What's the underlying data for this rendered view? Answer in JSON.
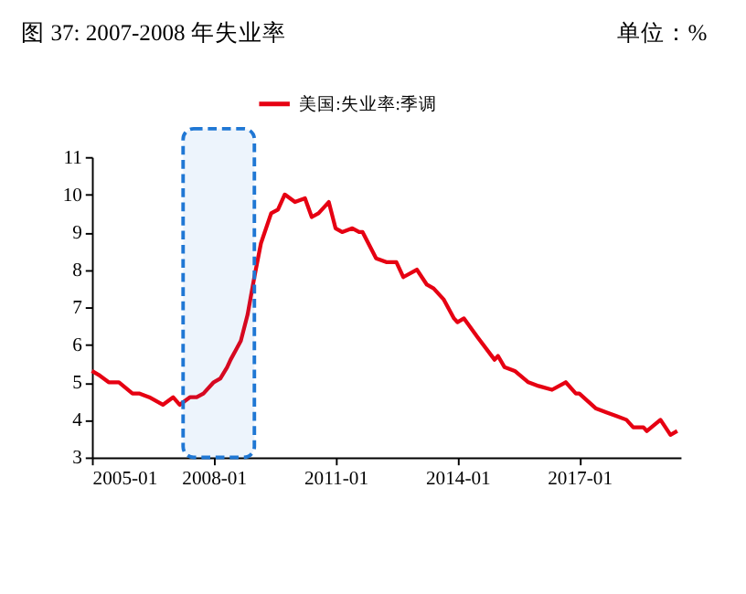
{
  "chart_data": {
    "type": "line",
    "title": "图 37:      2007-2008 年失业率",
    "annotations": [
      "单位：%"
    ],
    "x": [
      "2005-01",
      "2005-03",
      "2005-06",
      "2005-09",
      "2006-01",
      "2006-03",
      "2006-06",
      "2006-10",
      "2007-01",
      "2007-03",
      "2007-06",
      "2007-08",
      "2007-10",
      "2008-01",
      "2008-03",
      "2008-05",
      "2008-06",
      "2008-09",
      "2008-11",
      "2008-12",
      "2009-01",
      "2009-03",
      "2009-06",
      "2009-08",
      "2009-10",
      "2010-01",
      "2010-04",
      "2010-06",
      "2010-08",
      "2010-11",
      "2011-01",
      "2011-03",
      "2011-06",
      "2011-08",
      "2011-09",
      "2012-01",
      "2012-04",
      "2012-07",
      "2012-09",
      "2013-01",
      "2013-04",
      "2013-06",
      "2013-09",
      "2013-12",
      "2014-01",
      "2014-03",
      "2014-07",
      "2014-12",
      "2015-01",
      "2015-03",
      "2015-06",
      "2015-10",
      "2016-01",
      "2016-05",
      "2016-09",
      "2016-12",
      "2017-01",
      "2017-06",
      "2017-09",
      "2017-12",
      "2018-03",
      "2018-05",
      "2018-08",
      "2018-09",
      "2019-01",
      "2019-04",
      "2019-06"
    ],
    "series": [
      {
        "name": "美国:失业率:季调",
        "color": "#e60012",
        "values": [
          5.3,
          5.2,
          5.0,
          5.0,
          4.7,
          4.7,
          4.6,
          4.4,
          4.6,
          4.4,
          4.6,
          4.6,
          4.7,
          5.0,
          5.1,
          5.4,
          5.6,
          6.1,
          6.8,
          7.3,
          7.8,
          8.7,
          9.5,
          9.6,
          10.0,
          9.8,
          9.9,
          9.4,
          9.5,
          9.8,
          9.1,
          9.0,
          9.1,
          9.0,
          9.0,
          8.3,
          8.2,
          8.2,
          7.8,
          8.0,
          7.6,
          7.5,
          7.2,
          6.7,
          6.6,
          6.7,
          6.2,
          5.6,
          5.7,
          5.4,
          5.3,
          5.0,
          4.9,
          4.8,
          5.0,
          4.7,
          4.7,
          4.3,
          4.2,
          4.1,
          4.0,
          3.8,
          3.8,
          3.7,
          4.0,
          3.6,
          3.7
        ]
      }
    ],
    "xlim": [
      "2005-01",
      "2019-07"
    ],
    "xticks": [
      "2005-01",
      "2008-01",
      "2011-01",
      "2014-01",
      "2017-01"
    ],
    "ylim": [
      3,
      11
    ],
    "yticks": [
      3,
      4,
      5,
      6,
      7,
      8,
      9,
      10,
      11
    ],
    "bands": [
      {
        "axis": "x",
        "from": "2007-04",
        "to": "2009-01",
        "color": "#1f77d4"
      }
    ],
    "grid": false,
    "legend": "top",
    "line_style": "solid",
    "marker": "none"
  }
}
